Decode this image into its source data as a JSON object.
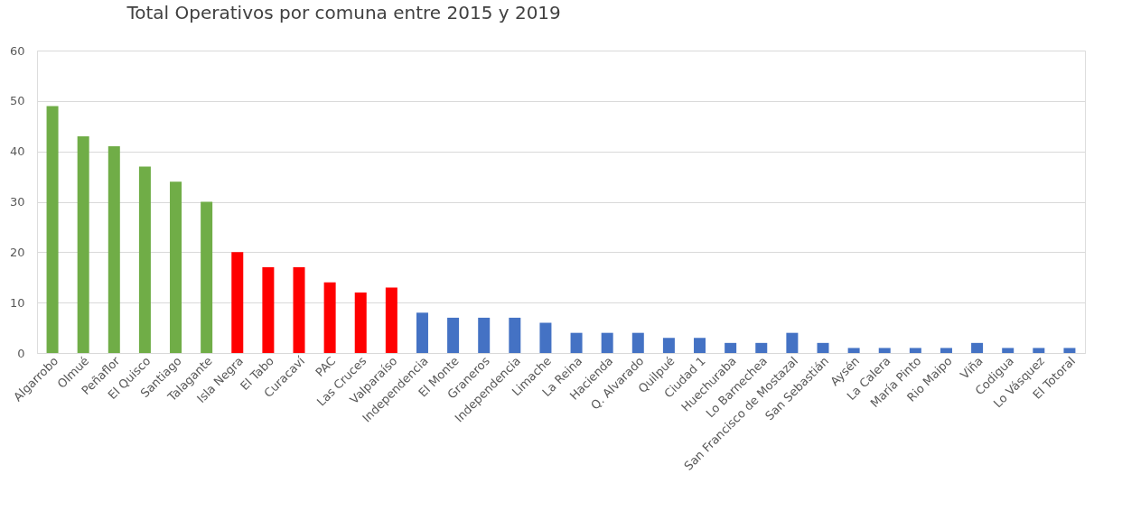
{
  "chart_data": {
    "type": "bar",
    "title": "Total Operativos por comuna entre 2015 y 2019",
    "categories": [
      "Algarrobo",
      "Olmué",
      "Peñaflor",
      "El Quisco",
      "Santiago",
      "Talagante",
      "Isla Negra",
      "El Tabo",
      "Curacaví",
      "PAC",
      "Las Cruces",
      "Valparaíso",
      "Independencia",
      "El Monte",
      "Graneros",
      "Independencia",
      "Limache",
      "La Reina",
      "Hacienda",
      "Q. Alvarado",
      "Quilpué",
      "Ciudad 1",
      "Huechuraba",
      "Lo Barnechea",
      "San Francisco de Mostazal",
      "San Sebastián",
      "Aysén",
      "La Calera",
      "María Pinto",
      "Rio Maipo",
      "Viña",
      "Codigua",
      "Lo Vásquez",
      "El Totoral"
    ],
    "values": [
      49,
      43,
      41,
      37,
      34,
      30,
      20,
      17,
      17,
      14,
      12,
      13,
      8,
      7,
      7,
      7,
      6,
      4,
      4,
      4,
      3,
      3,
      2,
      2,
      4,
      2,
      1,
      1,
      1,
      1,
      2,
      1,
      1,
      1
    ],
    "colors": [
      "#70ad47",
      "#70ad47",
      "#70ad47",
      "#70ad47",
      "#70ad47",
      "#70ad47",
      "#ff0000",
      "#ff0000",
      "#ff0000",
      "#ff0000",
      "#ff0000",
      "#ff0000",
      "#4472c4",
      "#4472c4",
      "#4472c4",
      "#4472c4",
      "#4472c4",
      "#4472c4",
      "#4472c4",
      "#4472c4",
      "#4472c4",
      "#4472c4",
      "#4472c4",
      "#4472c4",
      "#4472c4",
      "#4472c4",
      "#4472c4",
      "#4472c4",
      "#4472c4",
      "#4472c4",
      "#4472c4",
      "#4472c4",
      "#4472c4",
      "#4472c4"
    ],
    "ylim": [
      0,
      60
    ],
    "yticks": [
      0,
      10,
      20,
      30,
      40,
      50,
      60
    ],
    "grid": "y",
    "legend": false
  }
}
